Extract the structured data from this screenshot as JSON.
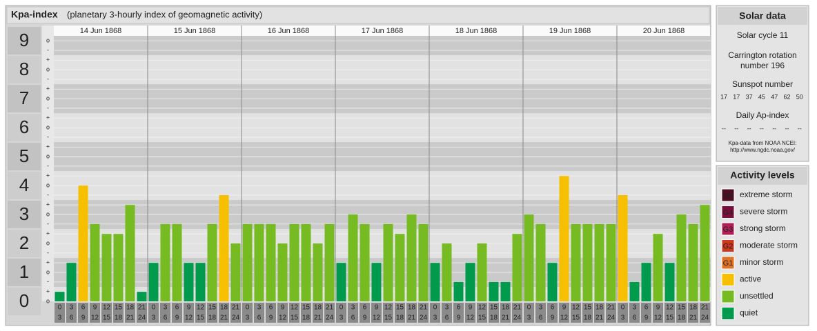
{
  "chart_data": {
    "type": "bar",
    "title": "Kpa-index",
    "subtitle": "(planetary 3-hourly index of geomagnetic activity)",
    "ylim": [
      0,
      9.17
    ],
    "yticks": [
      0,
      1,
      2,
      3,
      4,
      5,
      6,
      7,
      8,
      9
    ],
    "yminor": [
      {
        "value": 0,
        "label": "o"
      },
      {
        "value": 0.33,
        "label": "+"
      },
      {
        "value": 0.67,
        "label": "-"
      },
      {
        "value": 1,
        "label": "o"
      },
      {
        "value": 1.33,
        "label": "+"
      },
      {
        "value": 1.67,
        "label": "-"
      },
      {
        "value": 2,
        "label": "o"
      },
      {
        "value": 2.33,
        "label": "+"
      },
      {
        "value": 2.67,
        "label": "-"
      },
      {
        "value": 3,
        "label": "o"
      },
      {
        "value": 3.33,
        "label": "+"
      },
      {
        "value": 3.67,
        "label": "-"
      },
      {
        "value": 4,
        "label": "o"
      },
      {
        "value": 4.33,
        "label": "+"
      },
      {
        "value": 4.67,
        "label": "-"
      },
      {
        "value": 5,
        "label": "o"
      },
      {
        "value": 5.33,
        "label": "+"
      },
      {
        "value": 5.67,
        "label": "-"
      },
      {
        "value": 6,
        "label": "o"
      },
      {
        "value": 6.33,
        "label": "+"
      },
      {
        "value": 6.67,
        "label": "-"
      },
      {
        "value": 7,
        "label": "o"
      },
      {
        "value": 7.33,
        "label": "+"
      },
      {
        "value": 7.67,
        "label": "-"
      },
      {
        "value": 8,
        "label": "o"
      },
      {
        "value": 8.33,
        "label": "+"
      },
      {
        "value": 8.67,
        "label": "-"
      },
      {
        "value": 9,
        "label": "o"
      }
    ],
    "grid": true,
    "hours": [
      [
        0,
        3
      ],
      [
        3,
        6
      ],
      [
        6,
        9
      ],
      [
        9,
        12
      ],
      [
        12,
        15
      ],
      [
        15,
        18
      ],
      [
        18,
        21
      ],
      [
        21,
        24
      ]
    ],
    "days": [
      {
        "date": "14 Jun 1868",
        "values": [
          0.33,
          1.33,
          4,
          2.67,
          2.33,
          2.33,
          3.33,
          0.33
        ],
        "levels": [
          7,
          7,
          5,
          6,
          6,
          6,
          6,
          7
        ]
      },
      {
        "date": "15 Jun 1868",
        "values": [
          1.33,
          2.67,
          2.67,
          1.33,
          1.33,
          2.67,
          3.67,
          2
        ],
        "levels": [
          7,
          6,
          6,
          7,
          7,
          6,
          5,
          6
        ]
      },
      {
        "date": "16 Jun 1868",
        "values": [
          2.67,
          2.67,
          2.67,
          2,
          2.67,
          2.67,
          2,
          2.67
        ],
        "levels": [
          6,
          6,
          6,
          6,
          6,
          6,
          6,
          6
        ]
      },
      {
        "date": "17 Jun 1868",
        "values": [
          1.33,
          3,
          2.67,
          1.33,
          2.67,
          2.33,
          3,
          2.67
        ],
        "levels": [
          7,
          6,
          6,
          7,
          6,
          6,
          6,
          6
        ]
      },
      {
        "date": "18 Jun 1868",
        "values": [
          1.33,
          2,
          0.67,
          1.33,
          2,
          0.67,
          0.67,
          2.33
        ],
        "levels": [
          7,
          6,
          7,
          7,
          6,
          7,
          7,
          6
        ]
      },
      {
        "date": "19 Jun 1868",
        "values": [
          3,
          2.67,
          1.33,
          4.33,
          2.67,
          2.67,
          2.67,
          2.67
        ],
        "levels": [
          6,
          6,
          7,
          5,
          6,
          6,
          6,
          6
        ]
      },
      {
        "date": "20 Jun 1868",
        "values": [
          3.67,
          0.67,
          1.33,
          2.33,
          1.33,
          3,
          2.67,
          3.33
        ],
        "levels": [
          5,
          7,
          7,
          6,
          7,
          6,
          6,
          6
        ]
      }
    ]
  },
  "solar_data": {
    "title": "Solar data",
    "cycle": "Solar cycle 11",
    "carrington": [
      "Carrington rotation",
      "number 196"
    ],
    "sunspot_title": "Sunspot number",
    "sunspot": [
      17,
      17,
      37,
      45,
      47,
      62,
      50
    ],
    "ap_title": "Daily Ap-index",
    "ap": [
      "--",
      "--",
      "--",
      "--",
      "--",
      "--",
      "--"
    ],
    "note": [
      "Kpa-data from NOAA NCEI:",
      "http://www.ngdc.noaa.gov/"
    ]
  },
  "activity_levels": {
    "title": "Activity levels",
    "items": [
      {
        "badge": "G5",
        "name": "extreme storm",
        "color": "#4f0d22"
      },
      {
        "badge": "G4",
        "name": "severe storm",
        "color": "#7a0f3e"
      },
      {
        "badge": "G3",
        "name": "strong storm",
        "color": "#b21e58"
      },
      {
        "badge": "G2",
        "name": "moderate storm",
        "color": "#d0381e"
      },
      {
        "badge": "G1",
        "name": "minor storm",
        "color": "#e07222"
      },
      {
        "badge": null,
        "name": "active",
        "color": "#f6c000"
      },
      {
        "badge": null,
        "name": "unsettled",
        "color": "#77bb22"
      },
      {
        "badge": null,
        "name": "quiet",
        "color": "#009a4c"
      }
    ]
  }
}
